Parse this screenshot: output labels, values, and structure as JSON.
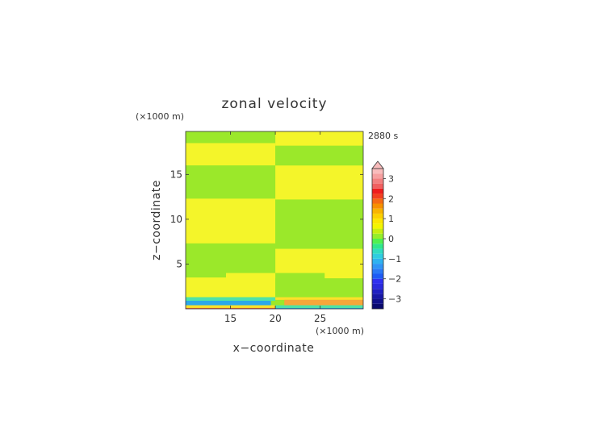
{
  "chart_data": {
    "type": "heatmap",
    "title": "zonal velocity",
    "time_label": "2880 s",
    "xlabel": "x−coordinate",
    "ylabel": "z−coordinate",
    "x_unit": "(×1000 m)",
    "y_unit": "(×1000 m)",
    "xlim": [
      10,
      29.8
    ],
    "ylim": [
      0,
      19.8
    ],
    "x_ticks": [
      15,
      20,
      25
    ],
    "y_ticks": [
      5,
      10,
      15
    ],
    "grid": false,
    "colorbar": {
      "levels": [
        -3.5,
        -3.25,
        -3,
        -2.75,
        -2.5,
        -2.25,
        -2,
        -1.75,
        -1.5,
        -1.25,
        -1,
        -0.75,
        -0.5,
        -0.25,
        0,
        0.25,
        0.5,
        0.75,
        1,
        1.25,
        1.5,
        1.75,
        2,
        2.25,
        2.5,
        2.75,
        3,
        3.25,
        3.5
      ],
      "tick_labels": [
        "3",
        "2",
        "1",
        "0",
        "−1",
        "−2",
        "−3"
      ],
      "tick_values": [
        3,
        2,
        1,
        0,
        -1,
        -2,
        -3
      ],
      "extend": "max"
    },
    "regions": [
      {
        "x": [
          10,
          20
        ],
        "z": [
          18.5,
          19.8
        ],
        "value": 0.1
      },
      {
        "x": [
          10,
          20
        ],
        "z": [
          16.0,
          18.5
        ],
        "value": 0.4
      },
      {
        "x": [
          10,
          20
        ],
        "z": [
          12.3,
          16.0
        ],
        "value": 0.1
      },
      {
        "x": [
          10,
          20
        ],
        "z": [
          7.3,
          12.3
        ],
        "value": 0.4
      },
      {
        "x": [
          10,
          20
        ],
        "z": [
          3.5,
          7.3
        ],
        "value": 0.1
      },
      {
        "x": [
          10,
          20
        ],
        "z": [
          1.3,
          3.5
        ],
        "value": 0.4
      },
      {
        "x": [
          20,
          29.8
        ],
        "z": [
          18.2,
          19.8
        ],
        "value": 0.4
      },
      {
        "x": [
          20,
          29.8
        ],
        "z": [
          16.0,
          18.2
        ],
        "value": 0.1
      },
      {
        "x": [
          20,
          29.8
        ],
        "z": [
          12.2,
          16.0
        ],
        "value": 0.4
      },
      {
        "x": [
          20,
          29.8
        ],
        "z": [
          6.7,
          12.2
        ],
        "value": 0.1
      },
      {
        "x": [
          20,
          29.8
        ],
        "z": [
          3.4,
          6.7
        ],
        "value": 0.4
      },
      {
        "x": [
          20,
          29.8
        ],
        "z": [
          1.3,
          3.4
        ],
        "value": 0.1
      },
      {
        "x": [
          14.5,
          20
        ],
        "z": [
          3.1,
          4.0
        ],
        "value": 0.4
      },
      {
        "x": [
          20,
          25.5
        ],
        "z": [
          3.1,
          4.0
        ],
        "value": 0.1
      },
      {
        "x": [
          10,
          20
        ],
        "z": [
          0.9,
          1.3
        ],
        "value": -0.6
      },
      {
        "x": [
          10,
          19.5
        ],
        "z": [
          0.4,
          0.9
        ],
        "value": -1.3
      },
      {
        "x": [
          10,
          20
        ],
        "z": [
          0.1,
          0.4
        ],
        "value": 0.6
      },
      {
        "x": [
          10,
          20
        ],
        "z": [
          0,
          0.1
        ],
        "value": 1.6
      },
      {
        "x": [
          20,
          29.8
        ],
        "z": [
          1.0,
          1.3
        ],
        "value": 0.6
      },
      {
        "x": [
          21,
          29.8
        ],
        "z": [
          0.4,
          1.0
        ],
        "value": 1.1
      },
      {
        "x": [
          20,
          29.8
        ],
        "z": [
          0.1,
          0.4
        ],
        "value": -0.6
      },
      {
        "x": [
          20,
          29.8
        ],
        "z": [
          0,
          0.1
        ],
        "value": -1.3
      }
    ]
  }
}
